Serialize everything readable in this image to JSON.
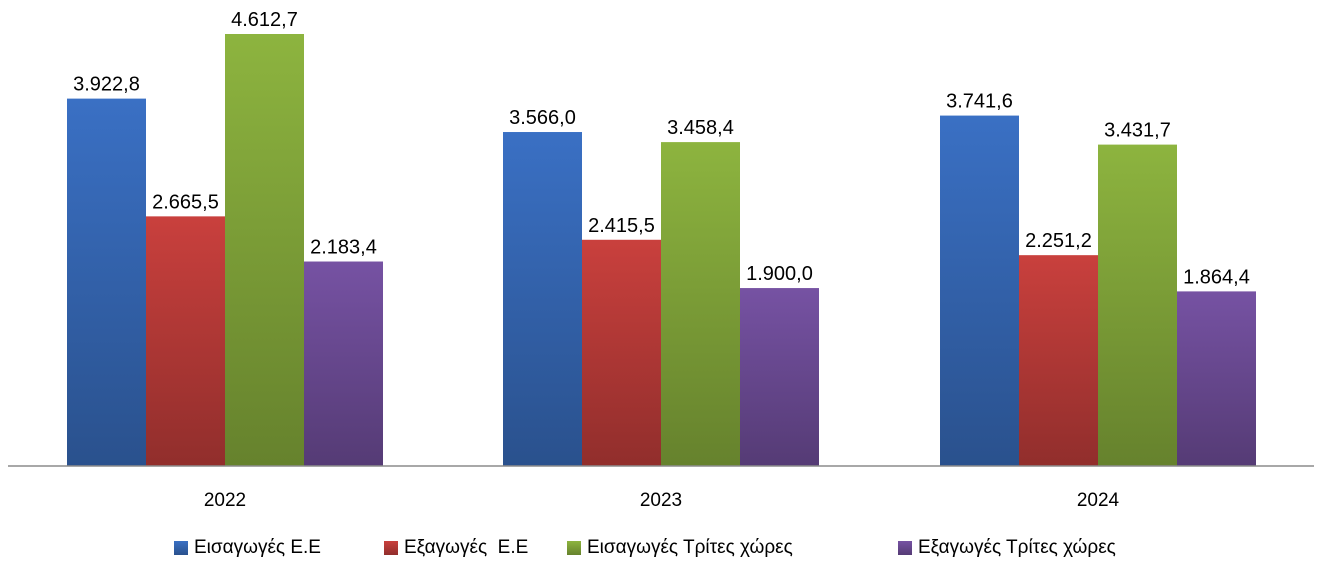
{
  "chart_data": {
    "type": "bar",
    "categories": [
      "2022",
      "2023",
      "2024"
    ],
    "series": [
      {
        "name": "Εισαγωγές Ε.Ε",
        "values": [
          3922.8,
          3566.0,
          3741.6
        ],
        "labels": [
          "3.922,8",
          "3.566,0",
          "3.741,6"
        ],
        "color": "#3a70c4"
      },
      {
        "name": "Εξαγωγές  Ε.Ε",
        "values": [
          2665.5,
          2415.5,
          2251.2
        ],
        "labels": [
          "2.665,5",
          "2.415,5",
          "2.251,2"
        ],
        "color": "#c9403d"
      },
      {
        "name": "Εισαγωγές Τρίτες χώρες",
        "values": [
          4612.7,
          3458.4,
          3431.7
        ],
        "labels": [
          "4.612,7",
          "3.458,4",
          "3.431,7"
        ],
        "color": "#8db43f"
      },
      {
        "name": "Εξαγωγές Τρίτες χώρες",
        "values": [
          2183.4,
          1900.0,
          1864.4
        ],
        "labels": [
          "2.183,4",
          "1.900,0",
          "1.864,4"
        ],
        "color": "#7652a3"
      }
    ],
    "ylim": [
      0,
      5000
    ],
    "grid": false,
    "legend": "bottom"
  }
}
